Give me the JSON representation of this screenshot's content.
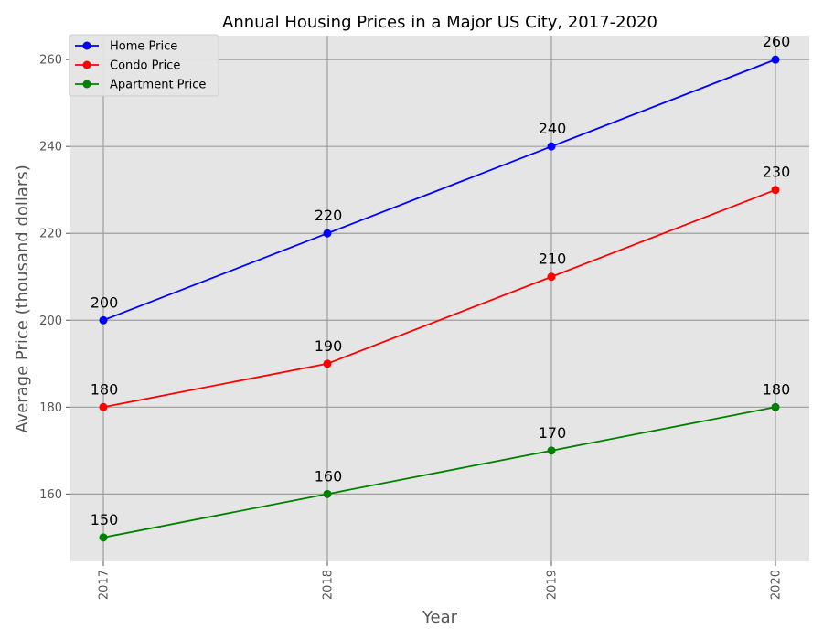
{
  "chart_data": {
    "type": "line",
    "title": "Annual Housing Prices in a Major US City, 2017-2020",
    "xlabel": "Year",
    "ylabel": "Average Price (thousand dollars)",
    "categories": [
      "2017",
      "2018",
      "2019",
      "2020"
    ],
    "yticks": [
      "160",
      "180",
      "200",
      "220",
      "240",
      "260"
    ],
    "ylim": [
      144.5,
      265.5
    ],
    "grid": true,
    "legend_position": "top-left",
    "plot_background": "#e5e5e5",
    "grid_color": "#9e9e9e",
    "series": [
      {
        "name": "Home Price",
        "color": "#0000ff",
        "values": [
          200,
          220,
          240,
          260
        ],
        "labels": [
          "200",
          "220",
          "240",
          "260"
        ]
      },
      {
        "name": "Condo Price",
        "color": "#ff0000",
        "values": [
          180,
          190,
          210,
          230
        ],
        "labels": [
          "180",
          "190",
          "210",
          "230"
        ]
      },
      {
        "name": "Apartment Price",
        "color": "#008000",
        "values": [
          150,
          160,
          170,
          180
        ],
        "labels": [
          "150",
          "160",
          "170",
          "180"
        ]
      }
    ]
  }
}
